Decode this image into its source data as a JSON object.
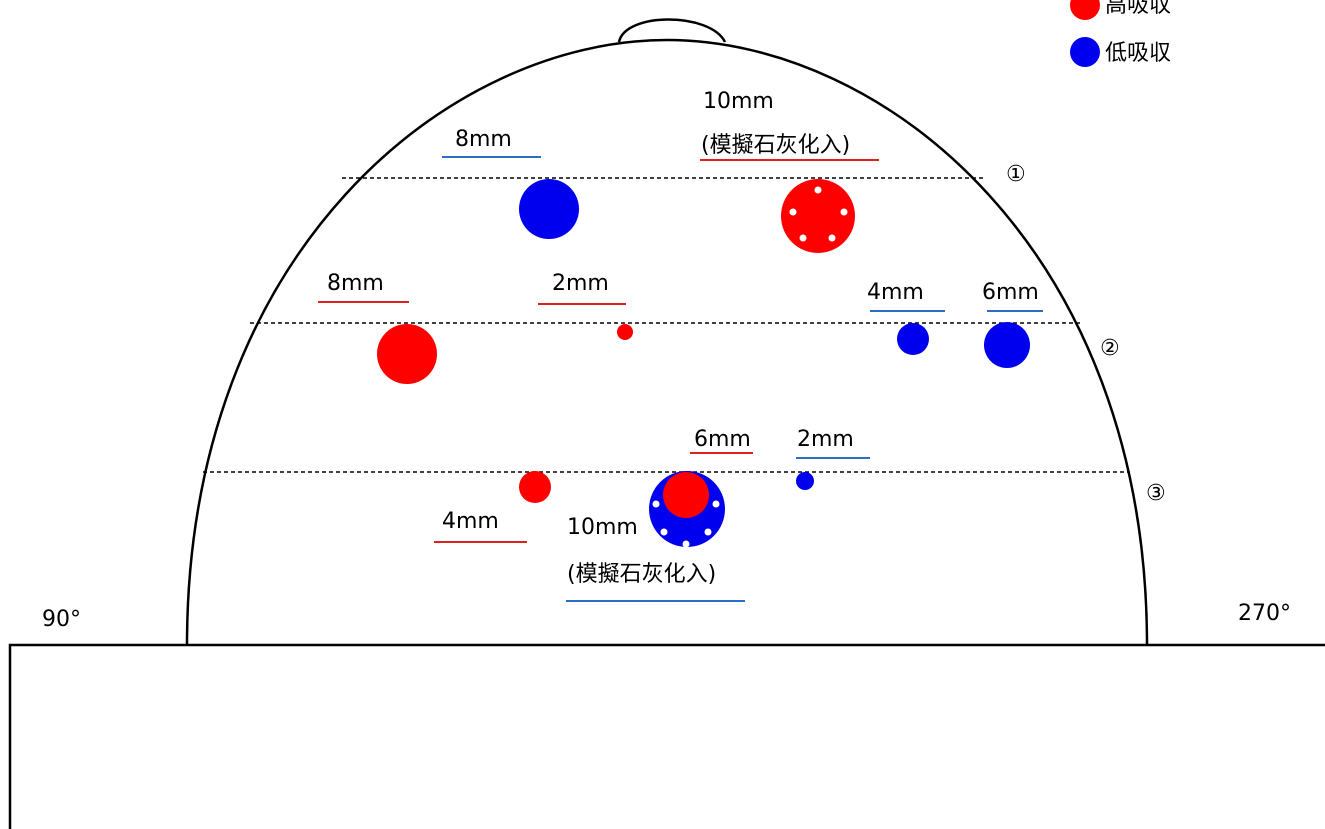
{
  "legend": {
    "high_label": "高吸収",
    "low_label": "低吸収"
  },
  "colors": {
    "high": "#ff0000",
    "low": "#0000ee",
    "underline_high": "#e02020",
    "underline_low": "#2a6fc0",
    "outline": "#000000"
  },
  "angles": {
    "left": "90°",
    "right": "270°"
  },
  "sections": {
    "s1": "①",
    "s2": "②",
    "s3": "③"
  },
  "labels": {
    "r1_low_8": "8mm",
    "r1_high_10": "10mm",
    "r1_high_10_note": "(模擬石灰化入)",
    "r2_high_8": "8mm",
    "r2_high_2": "2mm",
    "r2_low_4": "4mm",
    "r2_low_6": "6mm",
    "r3_high_6": "6mm",
    "r3_low_2": "2mm",
    "r3_high_4": "4mm",
    "r3_low_10": "10mm",
    "r3_low_10_note": "(模擬石灰化入)"
  }
}
